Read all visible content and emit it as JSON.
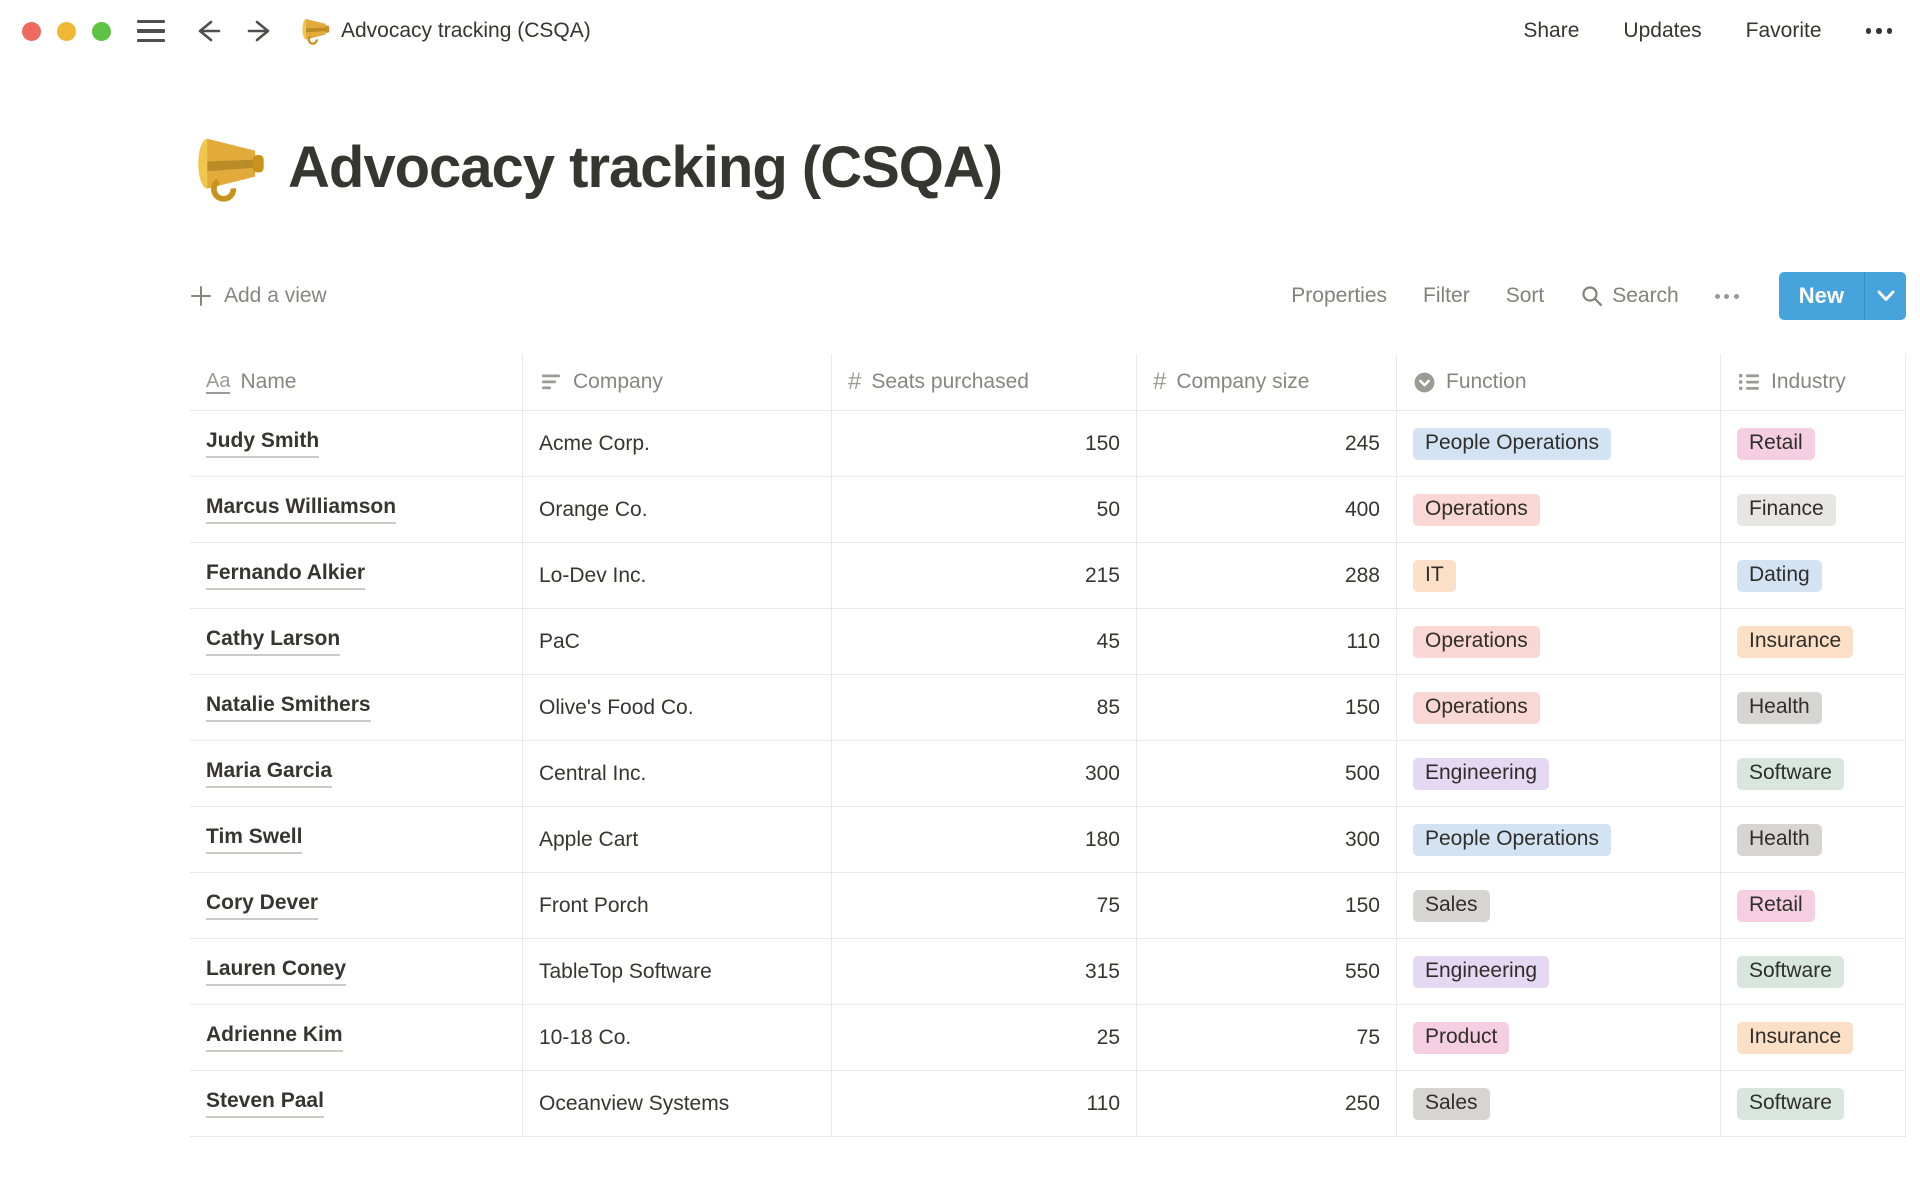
{
  "window": {
    "title": "Advocacy tracking (CSQA)",
    "actions": {
      "share": "Share",
      "updates": "Updates",
      "favorite": "Favorite"
    }
  },
  "page": {
    "icon": "megaphone",
    "title": "Advocacy tracking (CSQA)"
  },
  "toolbar": {
    "add_view_label": "Add a view",
    "properties_label": "Properties",
    "filter_label": "Filter",
    "sort_label": "Sort",
    "search_label": "Search",
    "new_label": "New",
    "new_button_color": "#47A3DB"
  },
  "table": {
    "columns": [
      {
        "id": "name",
        "label": "Name",
        "type": "title",
        "icon": "title-aa-icon"
      },
      {
        "id": "company",
        "label": "Company",
        "type": "text",
        "icon": "text-lines-icon"
      },
      {
        "id": "seats",
        "label": "Seats purchased",
        "type": "number",
        "icon": "number-hash-icon"
      },
      {
        "id": "size",
        "label": "Company size",
        "type": "number",
        "icon": "number-hash-icon"
      },
      {
        "id": "function",
        "label": "Function",
        "type": "select",
        "icon": "select-circle-icon"
      },
      {
        "id": "industry",
        "label": "Industry",
        "type": "multiselect",
        "icon": "multiselect-list-icon"
      }
    ],
    "rows": [
      {
        "name": "Judy Smith",
        "company": "Acme Corp.",
        "seats": "150",
        "size": "245",
        "function": {
          "label": "People Operations",
          "color": "blue"
        },
        "industry": {
          "label": "Retail",
          "color": "pink"
        }
      },
      {
        "name": "Marcus Williamson",
        "company": "Orange Co.",
        "seats": "50",
        "size": "400",
        "function": {
          "label": "Operations",
          "color": "red"
        },
        "industry": {
          "label": "Finance",
          "color": "lightgray"
        }
      },
      {
        "name": "Fernando Alkier",
        "company": "Lo-Dev Inc.",
        "seats": "215",
        "size": "288",
        "function": {
          "label": "IT",
          "color": "orange"
        },
        "industry": {
          "label": "Dating",
          "color": "blue"
        }
      },
      {
        "name": "Cathy Larson",
        "company": "PaC",
        "seats": "45",
        "size": "110",
        "function": {
          "label": "Operations",
          "color": "red"
        },
        "industry": {
          "label": "Insurance",
          "color": "orange"
        }
      },
      {
        "name": "Natalie Smithers",
        "company": "Olive's Food Co.",
        "seats": "85",
        "size": "150",
        "function": {
          "label": "Operations",
          "color": "red"
        },
        "industry": {
          "label": "Health",
          "color": "gray"
        }
      },
      {
        "name": "Maria Garcia",
        "company": "Central Inc.",
        "seats": "300",
        "size": "500",
        "function": {
          "label": "Engineering",
          "color": "purple"
        },
        "industry": {
          "label": "Software",
          "color": "green"
        }
      },
      {
        "name": "Tim Swell",
        "company": "Apple Cart",
        "seats": "180",
        "size": "300",
        "function": {
          "label": "People Operations",
          "color": "blue"
        },
        "industry": {
          "label": "Health",
          "color": "gray"
        }
      },
      {
        "name": "Cory Dever",
        "company": "Front Porch",
        "seats": "75",
        "size": "150",
        "function": {
          "label": "Sales",
          "color": "gray"
        },
        "industry": {
          "label": "Retail",
          "color": "pink"
        }
      },
      {
        "name": "Lauren Coney",
        "company": "TableTop Software",
        "seats": "315",
        "size": "550",
        "function": {
          "label": "Engineering",
          "color": "purple"
        },
        "industry": {
          "label": "Software",
          "color": "green"
        }
      },
      {
        "name": "Adrienne Kim",
        "company": "10-18 Co.",
        "seats": "25",
        "size": "75",
        "function": {
          "label": "Product",
          "color": "pink"
        },
        "industry": {
          "label": "Insurance",
          "color": "orange"
        }
      },
      {
        "name": "Steven Paal",
        "company": "Oceanview Systems",
        "seats": "110",
        "size": "250",
        "function": {
          "label": "Sales",
          "color": "gray"
        },
        "industry": {
          "label": "Software",
          "color": "green"
        }
      }
    ]
  },
  "tag_colors": {
    "blue": "#D3E3F3",
    "red": "#F9D7D4",
    "pink": "#F5CFE1",
    "orange": "#FBDFC6",
    "lightgray": "#E7E6E2",
    "gray": "#D6D5D1",
    "purple": "#E5D8F2",
    "green": "#D9E6DE"
  }
}
